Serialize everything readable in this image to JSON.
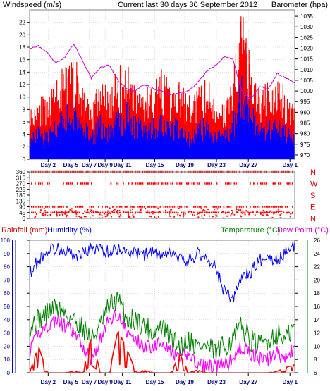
{
  "header": {
    "left": "Windspeed (m/s)",
    "center": "Current last 30 days 30 September 2012",
    "right": "Barometer (hpa)"
  },
  "colors": {
    "wind_gust": "#ff0000",
    "wind_avg": "#0000ff",
    "barometer": "#cc00cc",
    "direction": "#ff0000",
    "rain": "#ff0000",
    "humidity": "#0000ff",
    "temperature": "#008000",
    "dewpoint": "#ff00ff",
    "grid": "#c0c0c0",
    "axis_text": "#000080"
  },
  "x_ticks": [
    "Day 2",
    "Day 5",
    "Day 7",
    "Day 9",
    "Day 11",
    "Day 15",
    "Day 19",
    "Day 23",
    "Day 27",
    "Day 1"
  ],
  "chart_data": [
    {
      "type": "line",
      "name": "wind_and_pressure",
      "ylabel": "Windspeed (m/s)",
      "y2label": "Barometer (hpa)",
      "ylim": [
        0,
        24
      ],
      "y2lim": [
        968,
        1038
      ],
      "yticks": [
        0,
        2,
        4,
        6,
        8,
        10,
        12,
        14,
        16,
        18,
        20,
        22
      ],
      "y2ticks": [
        970,
        975,
        980,
        985,
        990,
        995,
        1000,
        1005,
        1010,
        1015,
        1020,
        1025,
        1030,
        1035
      ],
      "x_days": [
        0,
        1,
        2,
        3,
        4,
        5,
        6,
        7,
        8,
        9,
        10,
        11,
        12,
        13,
        14,
        15,
        16,
        17,
        18,
        19,
        20,
        21,
        22,
        23,
        24,
        25,
        26,
        27,
        28,
        29,
        30
      ],
      "series": [
        {
          "role": "gust",
          "values": [
            7,
            10,
            8,
            12,
            13,
            15,
            11,
            8,
            12,
            10,
            13,
            14,
            12,
            10,
            11,
            13,
            10,
            11,
            9,
            10,
            12,
            9,
            8,
            12,
            22,
            14,
            10,
            11,
            12,
            10,
            9
          ]
        },
        {
          "role": "average",
          "values": [
            4,
            5,
            4,
            6,
            7,
            9,
            6,
            4,
            6,
            5,
            7,
            8,
            6,
            5,
            6,
            7,
            5,
            6,
            4,
            5,
            6,
            4,
            4,
            6,
            13,
            8,
            5,
            6,
            6,
            5,
            4
          ]
        },
        {
          "role": "barometer",
          "values": [
            1020,
            1021,
            1018,
            1013,
            1016,
            1022,
            1014,
            1006,
            1011,
            1012,
            1005,
            1001,
            1000,
            1003,
            1001,
            1000,
            998,
            999,
            1000,
            1004,
            1009,
            1012,
            1016,
            1015,
            1000,
            996,
            1002,
            1001,
            1008,
            1006,
            1004
          ]
        }
      ]
    },
    {
      "type": "scatter",
      "name": "wind_direction",
      "ylim": [
        0,
        360
      ],
      "yticks": [
        0,
        45,
        90,
        135,
        180,
        225,
        270,
        315,
        360
      ],
      "compass_labels": [
        "N",
        "W",
        "S",
        "E",
        "N"
      ],
      "bands": [
        {
          "degrees": 360,
          "coverage": 0.85
        },
        {
          "degrees": 270,
          "coverage": 0.6
        },
        {
          "degrees": 90,
          "coverage": 0.7
        },
        {
          "degrees": 45,
          "coverage": 0.8
        }
      ]
    },
    {
      "type": "line",
      "name": "rain_humidity_temperature",
      "ylabel": "Rainfall (mm)  Humidity (%)",
      "y2label": "Temperature (°C)Dew Point (°C)",
      "ylim": [
        0,
        100
      ],
      "y2lim": [
        6,
        26
      ],
      "yticks": [
        0,
        10,
        20,
        30,
        40,
        50,
        60,
        70,
        80,
        90,
        100
      ],
      "y2ticks": [
        6,
        8,
        10,
        12,
        14,
        16,
        18,
        20,
        22,
        24,
        26
      ],
      "x_days": [
        0,
        1,
        2,
        3,
        4,
        5,
        6,
        7,
        8,
        9,
        10,
        11,
        12,
        13,
        14,
        15,
        16,
        17,
        18,
        19,
        20,
        21,
        22,
        23,
        24,
        25,
        26,
        27,
        28,
        29,
        30
      ],
      "series": [
        {
          "role": "humidity",
          "values": [
            75,
            85,
            92,
            94,
            93,
            88,
            90,
            94,
            93,
            91,
            94,
            92,
            90,
            89,
            92,
            86,
            91,
            85,
            84,
            90,
            87,
            80,
            62,
            55,
            72,
            76,
            85,
            88,
            84,
            91,
            96
          ]
        },
        {
          "role": "temperature",
          "values": [
            13,
            14,
            15,
            16,
            15,
            14,
            13,
            11,
            13,
            16,
            17,
            14,
            14,
            13,
            12,
            13,
            11,
            10,
            11,
            10,
            10,
            9,
            10,
            11,
            13,
            11,
            10,
            11,
            12,
            11,
            13
          ]
        },
        {
          "role": "dewpoint",
          "values": [
            9,
            12,
            13,
            14,
            13,
            12,
            10,
            8,
            11,
            14,
            15,
            12,
            11,
            10,
            10,
            11,
            9,
            8,
            9,
            7,
            7,
            7,
            7,
            8,
            10,
            9,
            8,
            8,
            9,
            8,
            10
          ]
        },
        {
          "role": "rain",
          "values": [
            0,
            20,
            0,
            0,
            0,
            1,
            0,
            28,
            0,
            0,
            32,
            18,
            1,
            2,
            0,
            0,
            0,
            14,
            0,
            2,
            0,
            0,
            0,
            0,
            0,
            0,
            0,
            0,
            1,
            4,
            6
          ]
        }
      ]
    }
  ],
  "lower": {
    "left_labels": [
      "Rainfall (mm)",
      "Humidity (%)"
    ],
    "right_labels": [
      "Temperature (°C)",
      "Dew Point (°C)"
    ]
  }
}
